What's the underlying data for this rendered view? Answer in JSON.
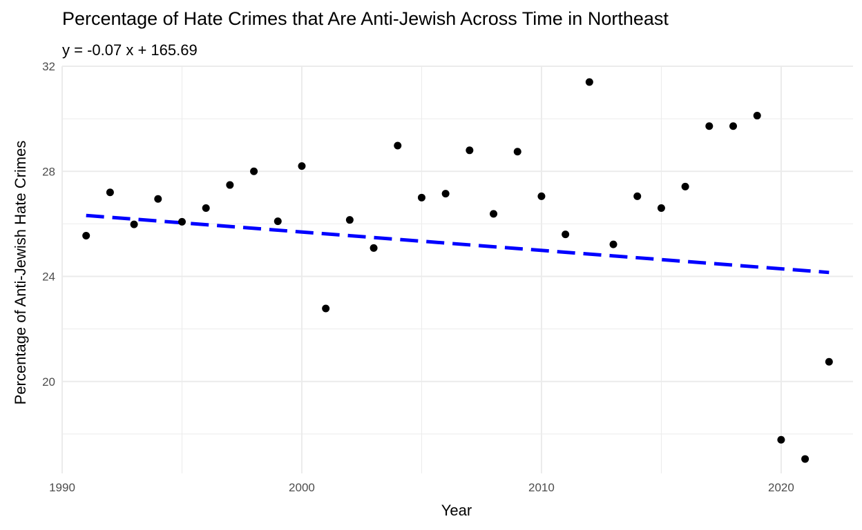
{
  "chart_data": {
    "type": "scatter",
    "title": "Percentage of Hate Crimes that Are Anti-Jewish Across Time in Northeast",
    "subtitle": "y = -0.07 x + 165.69",
    "xlabel": "Year",
    "ylabel": "Percentage of Anti-Jewish Hate Crimes",
    "xlim": [
      1990,
      2023
    ],
    "ylim": [
      16.5,
      32
    ],
    "x_ticks": [
      1990,
      2000,
      2010,
      2020
    ],
    "y_ticks": [
      20,
      24,
      28,
      32
    ],
    "grid": true,
    "points": [
      {
        "x": 1991,
        "y": 25.55
      },
      {
        "x": 1992,
        "y": 27.2
      },
      {
        "x": 1993,
        "y": 25.98
      },
      {
        "x": 1994,
        "y": 26.95
      },
      {
        "x": 1995,
        "y": 26.08
      },
      {
        "x": 1996,
        "y": 26.6
      },
      {
        "x": 1997,
        "y": 27.48
      },
      {
        "x": 1998,
        "y": 28.0
      },
      {
        "x": 1999,
        "y": 26.1
      },
      {
        "x": 2000,
        "y": 28.2
      },
      {
        "x": 2001,
        "y": 22.78
      },
      {
        "x": 2002,
        "y": 26.15
      },
      {
        "x": 2003,
        "y": 25.08
      },
      {
        "x": 2004,
        "y": 28.98
      },
      {
        "x": 2005,
        "y": 27.0
      },
      {
        "x": 2006,
        "y": 27.15
      },
      {
        "x": 2007,
        "y": 28.8
      },
      {
        "x": 2008,
        "y": 26.38
      },
      {
        "x": 2009,
        "y": 28.75
      },
      {
        "x": 2010,
        "y": 27.05
      },
      {
        "x": 2011,
        "y": 25.6
      },
      {
        "x": 2012,
        "y": 31.4
      },
      {
        "x": 2013,
        "y": 25.22
      },
      {
        "x": 2014,
        "y": 27.05
      },
      {
        "x": 2015,
        "y": 26.6
      },
      {
        "x": 2016,
        "y": 27.42
      },
      {
        "x": 2017,
        "y": 29.72
      },
      {
        "x": 2018,
        "y": 29.72
      },
      {
        "x": 2019,
        "y": 30.12
      },
      {
        "x": 2020,
        "y": 17.78
      },
      {
        "x": 2021,
        "y": 17.05
      },
      {
        "x": 2022,
        "y": 20.75
      }
    ],
    "trend_line": {
      "slope": -0.07,
      "intercept": 165.69,
      "x_start": 1991,
      "x_end": 2022,
      "color": "#0000ff",
      "style": "dashed"
    },
    "point_color": "#000000",
    "grid_color": "#ebebeb"
  }
}
